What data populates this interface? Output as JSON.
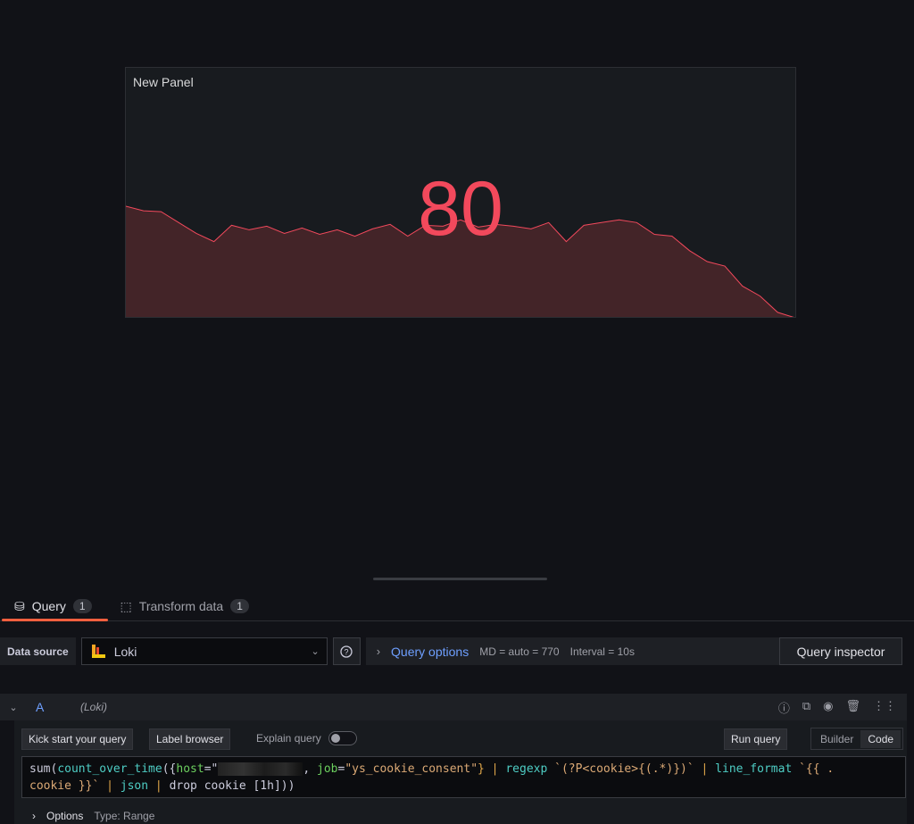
{
  "panel": {
    "title": "New Panel",
    "value": "80",
    "color": "#f2495c",
    "fill": "#432428",
    "chart_data": {
      "type": "area",
      "series": [
        {
          "values": [
            123,
            118,
            117,
            105,
            93,
            84,
            102,
            97,
            101,
            93,
            99,
            92,
            97,
            90,
            98,
            103,
            90,
            102,
            101,
            108,
            100,
            103,
            101,
            98,
            105,
            84,
            102,
            105,
            108,
            105,
            92,
            90,
            74,
            62,
            57,
            35,
            24,
            6,
            0
          ]
        }
      ]
    }
  },
  "tabs": [
    {
      "label": "Query",
      "count": "1",
      "icon": "database-icon"
    },
    {
      "label": "Transform data",
      "count": "1",
      "icon": "transform-icon"
    }
  ],
  "datasource": {
    "label": "Data source",
    "value": "Loki",
    "help": "?"
  },
  "query_options": {
    "label": "Query options",
    "md": "MD = auto = 770",
    "interval": "Interval = 10s"
  },
  "query_inspector": "Query inspector",
  "query": {
    "ref": "A",
    "source": "(Loki)",
    "kick_start": "Kick start your query",
    "label_browser": "Label browser",
    "explain": "Explain query",
    "run": "Run query",
    "builder": "Builder",
    "code": "Code",
    "expr": {
      "p1": "sum(",
      "p2": "count_over_time",
      "p3": "({",
      "p4": "host",
      "p5": "=\"",
      "p6": ", ",
      "p7": "job",
      "p8": "=",
      "p9": "\"ys_cookie_consent\"",
      "p10": "} | ",
      "p11": "regexp",
      "p12": " `(?P<cookie>{(.*)})`",
      "p13": " | ",
      "p14": "line_format",
      "p15": " `{{ .\ncookie }}`",
      "p16": " | ",
      "p17": "json",
      "p18": " | ",
      "p19": "drop cookie [1h]))"
    },
    "options_label": "Options",
    "type": "Type: Range"
  }
}
